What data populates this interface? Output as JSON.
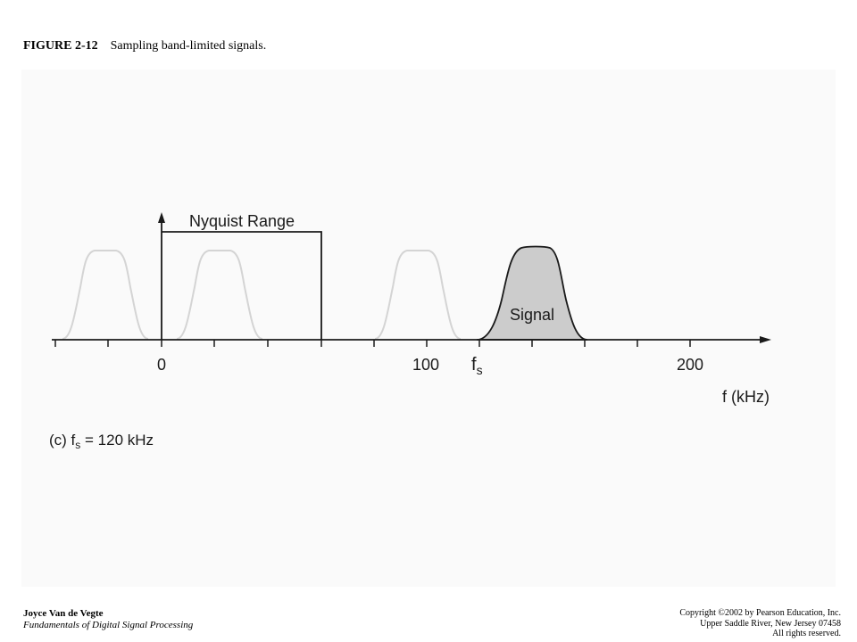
{
  "caption": {
    "figure_label": "FIGURE 2-12",
    "text": "Sampling band-limited signals."
  },
  "diagram": {
    "nyquist_label": "Nyquist Range",
    "signal_label": "Signal",
    "tick_labels": {
      "zero": "0",
      "hundred": "100",
      "two_hundred": "200",
      "fs_main": "f",
      "fs_sub": "s"
    },
    "axis_label": "f (kHz)",
    "subcaption": {
      "prefix": "(c) f",
      "sub": "s",
      "suffix": " = 120 kHz"
    },
    "colors": {
      "signal_fill": "#cccccc",
      "ghost_stroke": "#d4d4d4",
      "axis": "#1a1a1a"
    }
  },
  "footer": {
    "author": "Joyce Van de Vegte",
    "book": "Fundamentals of Digital Signal Processing",
    "copyright_line1": "Copyright ©2002 by Pearson Education, Inc.",
    "copyright_line2": "Upper Saddle River, New Jersey 07458",
    "copyright_line3": "All rights reserved."
  }
}
